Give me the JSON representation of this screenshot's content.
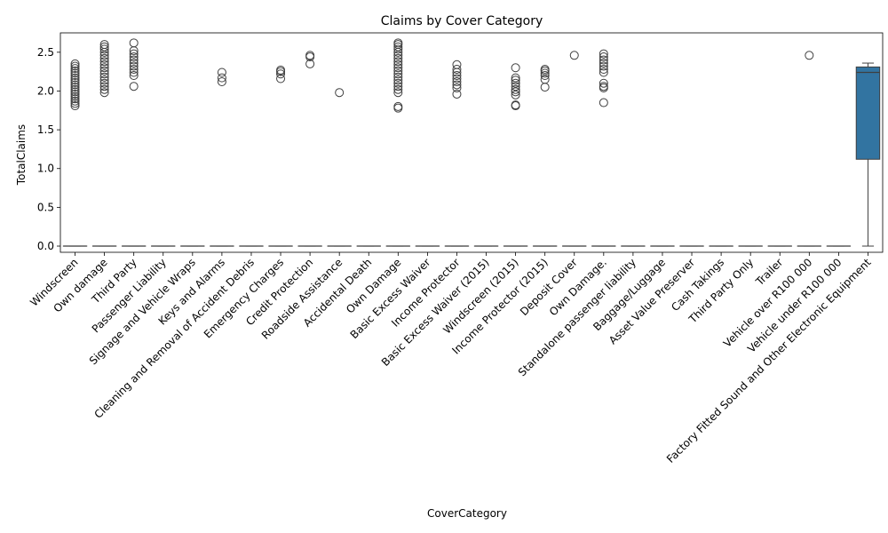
{
  "chart_data": {
    "type": "boxplot",
    "title": "Claims by Cover Category",
    "xlabel": "CoverCategory",
    "ylabel": "TotalClaims",
    "ylim": [
      -0.08,
      2.75
    ],
    "yticks": [
      0.0,
      0.5,
      1.0,
      1.5,
      2.0,
      2.5
    ],
    "ytick_labels": [
      "0.0",
      "0.5",
      "1.0",
      "1.5",
      "2.0",
      "2.5"
    ],
    "colors": {
      "box": "#3274a1",
      "line": "#3f3f3f"
    },
    "categories": [
      "Windscreen",
      "Own damage",
      "Third Party",
      "Passenger Liability",
      "Signage and Vehicle Wraps",
      "Keys and Alarms",
      "Cleaning and Removal of Accident Debris",
      "Emergency Charges",
      "Credit Protection",
      "Roadside Assistance",
      "Accidental Death",
      "Own Damage",
      "Basic Excess Waiver",
      "Income Protector",
      "Basic Excess Waiver (2015)",
      "Windscreen (2015)",
      "Income Protector (2015)",
      "Deposit Cover",
      "Own Damage.",
      "Standalone passenger liability",
      "Baggage/Luggage",
      "Asset Value Preserver",
      "Cash Takings",
      "Third Party Only",
      "Trailer",
      "Vehicle over R100 000",
      "Vehicle under R100 000",
      "Factory Fitted Sound and Other Electronic Equipment"
    ],
    "boxes": [
      {
        "q1": 0,
        "median": 0,
        "q3": 0,
        "whisker_low": 0,
        "whisker_high": 0,
        "outliers": [
          1.81,
          1.84,
          1.87,
          1.9,
          1.93,
          1.96,
          1.99,
          2.02,
          2.05,
          2.08,
          2.11,
          2.14,
          2.17,
          2.2,
          2.23,
          2.26,
          2.29,
          2.32,
          2.35
        ]
      },
      {
        "q1": 0,
        "median": 0,
        "q3": 0,
        "whisker_low": 0,
        "whisker_high": 0,
        "outliers": [
          1.98,
          2.02,
          2.06,
          2.1,
          2.14,
          2.18,
          2.22,
          2.26,
          2.3,
          2.34,
          2.38,
          2.42,
          2.46,
          2.5,
          2.54,
          2.57,
          2.6
        ]
      },
      {
        "q1": 0,
        "median": 0,
        "q3": 0,
        "whisker_low": 0,
        "whisker_high": 0,
        "outliers": [
          2.06,
          2.2,
          2.24,
          2.28,
          2.32,
          2.36,
          2.4,
          2.44,
          2.48,
          2.52,
          2.62
        ]
      },
      {
        "q1": 0,
        "median": 0,
        "q3": 0,
        "whisker_low": 0,
        "whisker_high": 0,
        "outliers": []
      },
      {
        "q1": 0,
        "median": 0,
        "q3": 0,
        "whisker_low": 0,
        "whisker_high": 0,
        "outliers": []
      },
      {
        "q1": 0,
        "median": 0,
        "q3": 0,
        "whisker_low": 0,
        "whisker_high": 0,
        "outliers": [
          2.12,
          2.17,
          2.24
        ]
      },
      {
        "q1": 0,
        "median": 0,
        "q3": 0,
        "whisker_low": 0,
        "whisker_high": 0,
        "outliers": []
      },
      {
        "q1": 0,
        "median": 0,
        "q3": 0,
        "whisker_low": 0,
        "whisker_high": 0,
        "outliers": [
          2.16,
          2.22,
          2.25,
          2.27
        ]
      },
      {
        "q1": 0,
        "median": 0,
        "q3": 0,
        "whisker_low": 0,
        "whisker_high": 0,
        "outliers": [
          2.35,
          2.44,
          2.46
        ]
      },
      {
        "q1": 0,
        "median": 0,
        "q3": 0,
        "whisker_low": 0,
        "whisker_high": 0,
        "outliers": [
          1.98
        ]
      },
      {
        "q1": 0,
        "median": 0,
        "q3": 0,
        "whisker_low": 0,
        "whisker_high": 0,
        "outliers": []
      },
      {
        "q1": 0,
        "median": 0,
        "q3": 0,
        "whisker_low": 0,
        "whisker_high": 0,
        "outliers": [
          1.78,
          1.8,
          1.98,
          2.02,
          2.06,
          2.1,
          2.14,
          2.18,
          2.22,
          2.26,
          2.3,
          2.34,
          2.38,
          2.42,
          2.46,
          2.5,
          2.54,
          2.57,
          2.6,
          2.62
        ]
      },
      {
        "q1": 0,
        "median": 0,
        "q3": 0,
        "whisker_low": 0,
        "whisker_high": 0,
        "outliers": []
      },
      {
        "q1": 0,
        "median": 0,
        "q3": 0,
        "whisker_low": 0,
        "whisker_high": 0,
        "outliers": [
          1.96,
          2.04,
          2.08,
          2.12,
          2.16,
          2.2,
          2.24,
          2.28,
          2.34
        ]
      },
      {
        "q1": 0,
        "median": 0,
        "q3": 0,
        "whisker_low": 0,
        "whisker_high": 0,
        "outliers": []
      },
      {
        "q1": 0,
        "median": 0,
        "q3": 0,
        "whisker_low": 0,
        "whisker_high": 0,
        "outliers": [
          1.81,
          1.82,
          1.95,
          1.99,
          2.02,
          2.06,
          2.1,
          2.14,
          2.17,
          2.3
        ]
      },
      {
        "q1": 0,
        "median": 0,
        "q3": 0,
        "whisker_low": 0,
        "whisker_high": 0,
        "outliers": [
          2.05,
          2.15,
          2.2,
          2.23,
          2.26,
          2.28
        ]
      },
      {
        "q1": 0,
        "median": 0,
        "q3": 0,
        "whisker_low": 0,
        "whisker_high": 0,
        "outliers": [
          2.46
        ]
      },
      {
        "q1": 0,
        "median": 0,
        "q3": 0,
        "whisker_low": 0,
        "whisker_high": 0,
        "outliers": [
          1.85,
          2.04,
          2.06,
          2.1,
          2.24,
          2.28,
          2.32,
          2.36,
          2.4,
          2.44,
          2.48
        ]
      },
      {
        "q1": 0,
        "median": 0,
        "q3": 0,
        "whisker_low": 0,
        "whisker_high": 0,
        "outliers": []
      },
      {
        "q1": 0,
        "median": 0,
        "q3": 0,
        "whisker_low": 0,
        "whisker_high": 0,
        "outliers": []
      },
      {
        "q1": 0,
        "median": 0,
        "q3": 0,
        "whisker_low": 0,
        "whisker_high": 0,
        "outliers": []
      },
      {
        "q1": 0,
        "median": 0,
        "q3": 0,
        "whisker_low": 0,
        "whisker_high": 0,
        "outliers": []
      },
      {
        "q1": 0,
        "median": 0,
        "q3": 0,
        "whisker_low": 0,
        "whisker_high": 0,
        "outliers": []
      },
      {
        "q1": 0,
        "median": 0,
        "q3": 0,
        "whisker_low": 0,
        "whisker_high": 0,
        "outliers": []
      },
      {
        "q1": 0,
        "median": 0,
        "q3": 0,
        "whisker_low": 0,
        "whisker_high": 0,
        "outliers": [
          2.46
        ]
      },
      {
        "q1": 0,
        "median": 0,
        "q3": 0,
        "whisker_low": 0,
        "whisker_high": 0,
        "outliers": []
      },
      {
        "q1": 1.12,
        "median": 2.24,
        "q3": 2.31,
        "whisker_low": 0,
        "whisker_high": 2.36,
        "outliers": []
      }
    ]
  }
}
